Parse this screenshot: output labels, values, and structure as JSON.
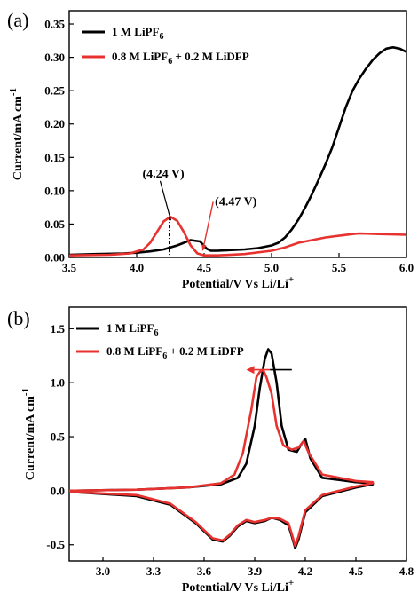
{
  "chart_data": [
    {
      "type": "line",
      "panel_label": "(a)",
      "xlabel": "Potential/V Vs Li/Li",
      "xlabel_sup": "+",
      "ylabel": "Current/mA cm",
      "ylabel_sup": "-1",
      "xlim": [
        3.5,
        6.0
      ],
      "ylim": [
        0.0,
        0.37
      ],
      "xticks": [
        "3.5",
        "4.0",
        "4.5",
        "5.0",
        "5.5",
        "6.0"
      ],
      "xtick_values": [
        3.5,
        4.0,
        4.5,
        5.0,
        5.5,
        6.0
      ],
      "yticks": [
        "0.00",
        "0.05",
        "0.10",
        "0.15",
        "0.20",
        "0.25",
        "0.30",
        "0.35"
      ],
      "ytick_values": [
        0.0,
        0.05,
        0.1,
        0.15,
        0.2,
        0.25,
        0.3,
        0.35
      ],
      "legend_position": "top-left",
      "series": [
        {
          "name": "1 M LiPF",
          "name_sub": "6",
          "name_tail": "",
          "color": "#000000",
          "x": [
            3.5,
            3.7,
            3.9,
            4.0,
            4.1,
            4.2,
            4.3,
            4.4,
            4.47,
            4.52,
            4.55,
            4.6,
            4.7,
            4.8,
            4.9,
            5.0,
            5.05,
            5.1,
            5.15,
            5.2,
            5.25,
            5.3,
            5.35,
            5.4,
            5.45,
            5.5,
            5.55,
            5.6,
            5.65,
            5.7,
            5.75,
            5.8,
            5.85,
            5.9,
            5.95,
            6.0
          ],
          "y": [
            0.004,
            0.005,
            0.006,
            0.007,
            0.009,
            0.012,
            0.018,
            0.026,
            0.024,
            0.013,
            0.01,
            0.01,
            0.011,
            0.012,
            0.014,
            0.018,
            0.022,
            0.03,
            0.042,
            0.057,
            0.075,
            0.095,
            0.117,
            0.14,
            0.165,
            0.195,
            0.225,
            0.25,
            0.268,
            0.283,
            0.296,
            0.306,
            0.313,
            0.315,
            0.313,
            0.308
          ]
        },
        {
          "name": "0.8 M LiPF",
          "name_sub": "6",
          "name_tail": " + 0.2 M LiDFP",
          "color": "#e8322f",
          "x": [
            3.5,
            3.8,
            3.95,
            4.05,
            4.1,
            4.15,
            4.2,
            4.25,
            4.3,
            4.35,
            4.4,
            4.45,
            4.5,
            4.6,
            4.8,
            5.0,
            5.1,
            5.2,
            5.4,
            5.6,
            5.65,
            5.8,
            6.0
          ],
          "y": [
            0.003,
            0.004,
            0.006,
            0.012,
            0.022,
            0.038,
            0.054,
            0.061,
            0.055,
            0.038,
            0.018,
            0.006,
            0.003,
            0.003,
            0.005,
            0.01,
            0.015,
            0.022,
            0.03,
            0.035,
            0.036,
            0.035,
            0.034
          ]
        }
      ],
      "annotations": [
        {
          "text": "(4.24 V)",
          "x": 4.24,
          "y": 0.061
        },
        {
          "text": "(4.47 V)",
          "x": 4.47,
          "y": 0.005
        }
      ]
    },
    {
      "type": "line",
      "panel_label": "(b)",
      "xlabel": "Potential/V Vs Li/Li",
      "xlabel_sup": "+",
      "ylabel": "Current/mA cm",
      "ylabel_sup": "-1",
      "xlim": [
        2.8,
        4.8
      ],
      "ylim": [
        -0.65,
        1.7
      ],
      "xticks": [
        "3.0",
        "3.3",
        "3.6",
        "3.9",
        "4.2",
        "4.5",
        "4.8"
      ],
      "xtick_values": [
        3.0,
        3.3,
        3.6,
        3.9,
        4.2,
        4.5,
        4.8
      ],
      "yticks": [
        "-0.5",
        "0.0",
        "0.5",
        "1.0",
        "1.5"
      ],
      "ytick_values": [
        -0.5,
        0.0,
        0.5,
        1.0,
        1.5
      ],
      "legend_position": "top-left",
      "arrow": {
        "direction": "left",
        "from_x": 4.12,
        "to_x": 3.85,
        "y": 1.12
      },
      "series": [
        {
          "name": "1 M LiPF",
          "name_sub": "6",
          "name_tail": "",
          "color": "#000000",
          "x": [
            2.8,
            3.2,
            3.5,
            3.7,
            3.8,
            3.85,
            3.9,
            3.93,
            3.96,
            3.98,
            4.0,
            4.03,
            4.06,
            4.1,
            4.15,
            4.18,
            4.2,
            4.23,
            4.3,
            4.5,
            4.6,
            4.6,
            4.5,
            4.3,
            4.2,
            4.16,
            4.14,
            4.12,
            4.1,
            4.05,
            4.0,
            3.96,
            3.9,
            3.85,
            3.8,
            3.75,
            3.71,
            3.65,
            3.55,
            3.4,
            3.2,
            2.8
          ],
          "y": [
            0.0,
            0.01,
            0.03,
            0.06,
            0.12,
            0.25,
            0.6,
            0.95,
            1.22,
            1.31,
            1.27,
            1.0,
            0.6,
            0.38,
            0.36,
            0.44,
            0.48,
            0.3,
            0.12,
            0.08,
            0.07,
            0.06,
            0.03,
            -0.05,
            -0.2,
            -0.45,
            -0.53,
            -0.42,
            -0.32,
            -0.27,
            -0.25,
            -0.28,
            -0.3,
            -0.28,
            -0.33,
            -0.42,
            -0.47,
            -0.45,
            -0.3,
            -0.13,
            -0.05,
            -0.01
          ]
        },
        {
          "name": "0.8 M LiPF",
          "name_sub": "6",
          "name_tail": " + 0.2 M LiDFP",
          "color": "#e8322f",
          "x": [
            2.8,
            3.2,
            3.5,
            3.7,
            3.78,
            3.83,
            3.88,
            3.91,
            3.93,
            3.95,
            3.97,
            4.0,
            4.03,
            4.07,
            4.12,
            4.16,
            4.19,
            4.22,
            4.3,
            4.5,
            4.6,
            4.6,
            4.5,
            4.3,
            4.2,
            4.16,
            4.14,
            4.12,
            4.1,
            4.05,
            4.0,
            3.96,
            3.9,
            3.85,
            3.8,
            3.75,
            3.71,
            3.65,
            3.55,
            3.4,
            3.2,
            2.8
          ],
          "y": [
            0.0,
            0.01,
            0.03,
            0.07,
            0.15,
            0.35,
            0.75,
            1.05,
            1.1,
            1.12,
            1.05,
            0.9,
            0.6,
            0.42,
            0.38,
            0.4,
            0.46,
            0.35,
            0.15,
            0.09,
            0.08,
            0.07,
            0.04,
            -0.04,
            -0.18,
            -0.42,
            -0.51,
            -0.4,
            -0.3,
            -0.26,
            -0.25,
            -0.27,
            -0.29,
            -0.27,
            -0.32,
            -0.41,
            -0.46,
            -0.44,
            -0.29,
            -0.12,
            -0.04,
            -0.01
          ]
        }
      ]
    }
  ]
}
